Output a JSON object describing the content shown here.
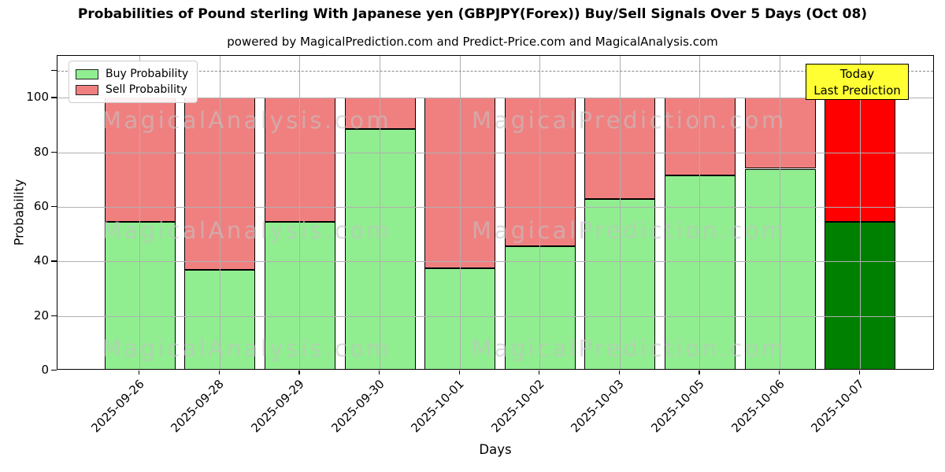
{
  "chart_data": {
    "type": "bar",
    "stacked": true,
    "title": "Probabilities of Pound sterling With Japanese yen (GBPJPY(Forex)) Buy/Sell Signals Over 5 Days (Oct 08)",
    "subtitle": "powered by MagicalPrediction.com and Predict-Price.com and MagicalAnalysis.com",
    "xlabel": "Days",
    "ylabel": "Probability",
    "ylim": [
      0,
      115.4
    ],
    "yticks": [
      0,
      20,
      40,
      60,
      80,
      100
    ],
    "extra_unlabeled_ytick": 110,
    "grid": true,
    "categories": [
      "2025-09-26",
      "2025-09-28",
      "2025-09-29",
      "2025-09-30",
      "2025-10-01",
      "2025-10-02",
      "2025-10-03",
      "2025-10-05",
      "2025-10-06",
      "2025-10-07"
    ],
    "series": [
      {
        "name": "Buy Probability",
        "values": [
          54.5,
          37,
          54.5,
          88.5,
          37.5,
          45.5,
          63,
          71.5,
          74,
          54.5
        ],
        "color": "#90EE90",
        "today_color": "#008000"
      },
      {
        "name": "Sell Probability",
        "values": [
          45.5,
          63,
          45.5,
          11.5,
          62.5,
          54.5,
          37,
          28.5,
          26,
          45.5
        ],
        "color": "#F08080",
        "today_color": "#FF0000"
      }
    ],
    "legend": {
      "position": "upper-left"
    },
    "threshold_line": {
      "y": 110,
      "style": "dashed",
      "color": "#8a8a8a"
    },
    "annotation": {
      "line1": "Today",
      "line2": "Last Prediction",
      "target_category": "2025-10-07",
      "bg_color": "#FFFF33",
      "border_color": "#000000"
    },
    "watermarks": {
      "left_text": "MagicalAnalysis.com",
      "right_text": "MagicalPrediction.com",
      "rows": 3
    },
    "colors": {
      "buy": "#90EE90",
      "sell": "#F08080",
      "today_buy": "#008000",
      "today_sell": "#FF0000",
      "grid": "#b0b0b0"
    }
  }
}
